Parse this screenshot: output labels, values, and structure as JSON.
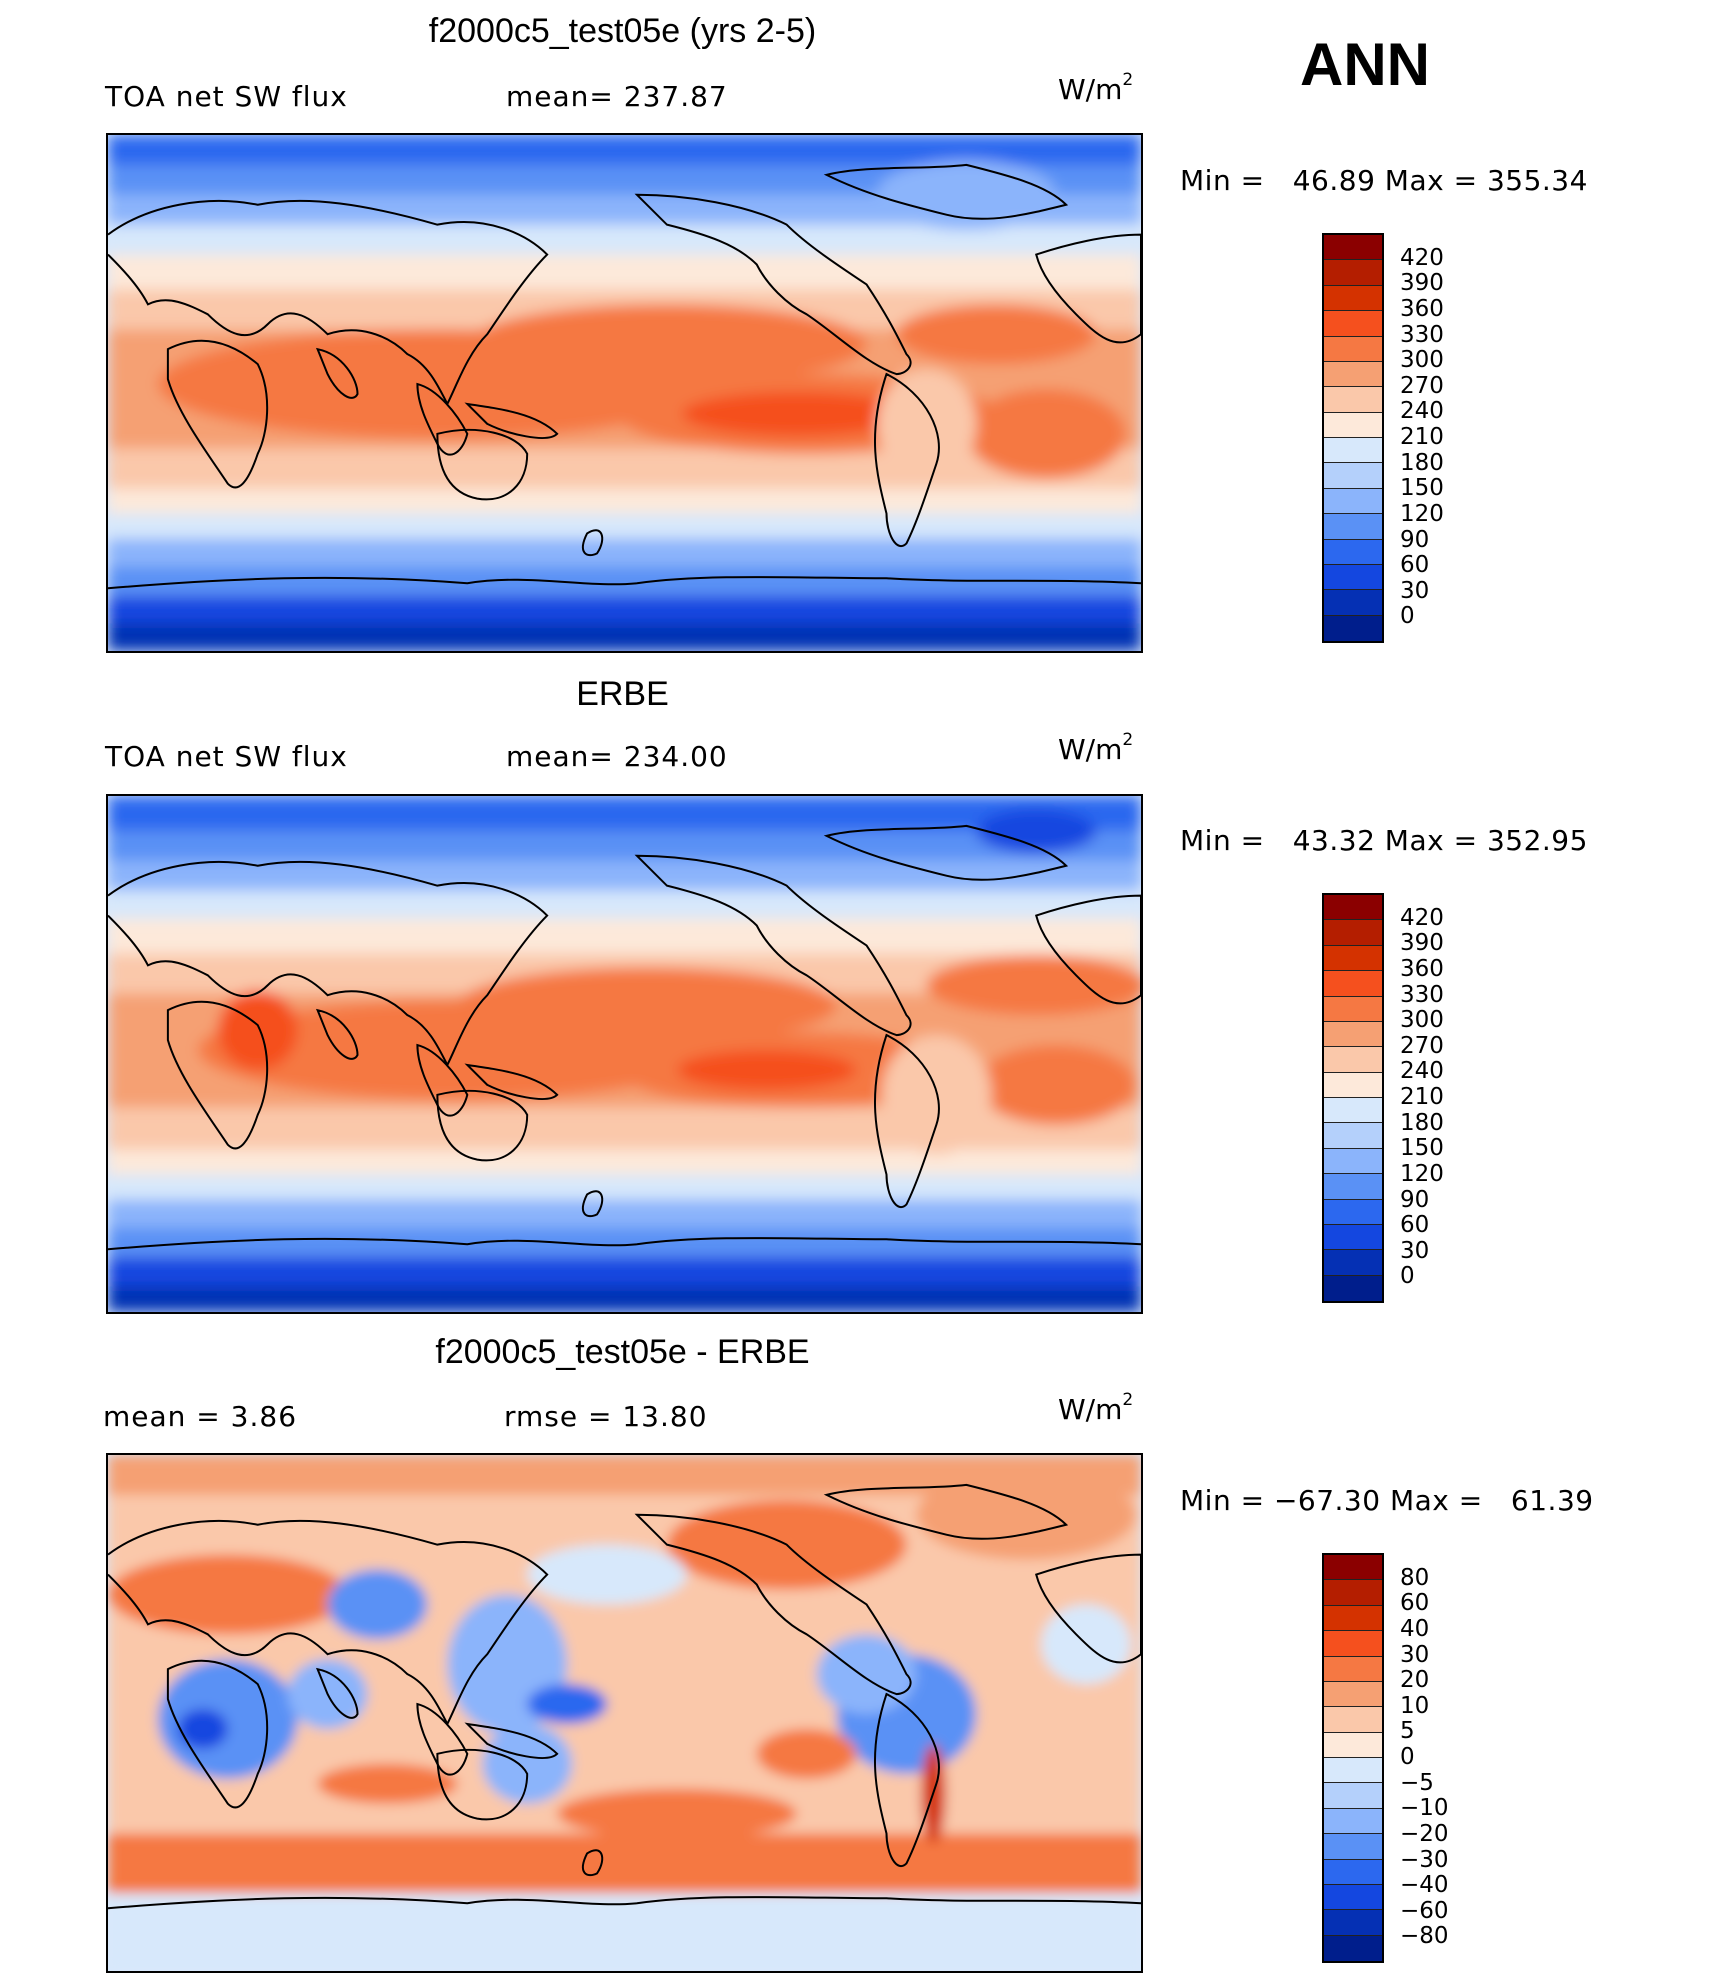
{
  "season": "ANN",
  "panels": [
    {
      "title": "f2000c5_test05e (yrs 2-5)",
      "left_label": "TOA net SW flux",
      "mean_label": "mean= 237.87",
      "units_base": "W/m",
      "units_exp": "2",
      "minmax": "Min =   46.89 Max = 355.34"
    },
    {
      "title": "ERBE",
      "left_label": "TOA net SW flux",
      "mean_label": "mean= 234.00",
      "units_base": "W/m",
      "units_exp": "2",
      "minmax": "Min =   43.32 Max = 352.95"
    },
    {
      "title": "f2000c5_test05e - ERBE",
      "left_label": "mean =    3.86",
      "mean_label": "rmse =   13.80",
      "units_base": "W/m",
      "units_exp": "2",
      "minmax": "Min = −67.30 Max =   61.39"
    }
  ],
  "colorbars": {
    "absolute": {
      "labels": [
        "420",
        "390",
        "360",
        "330",
        "300",
        "270",
        "240",
        "210",
        "180",
        "150",
        "120",
        "90",
        "60",
        "30",
        "0"
      ],
      "colors": [
        "#8b0000",
        "#b41e00",
        "#d43200",
        "#f5501e",
        "#f57843",
        "#f5a073",
        "#fac8aa",
        "#fde9da",
        "#d7e8fb",
        "#b4d0fb",
        "#8bb4fb",
        "#5a91f5",
        "#2c68ef",
        "#1447e0",
        "#0530b4",
        "#001e8c"
      ]
    },
    "difference": {
      "labels": [
        "80",
        "60",
        "40",
        "30",
        "20",
        "10",
        "5",
        "0",
        "−5",
        "−10",
        "−20",
        "−30",
        "−40",
        "−60",
        "−80"
      ],
      "colors": [
        "#8b0000",
        "#b41e00",
        "#d43200",
        "#f5501e",
        "#f57843",
        "#f5a073",
        "#fac8aa",
        "#fde9da",
        "#d7e8fb",
        "#b4d0fb",
        "#8bb4fb",
        "#5a91f5",
        "#2c68ef",
        "#1447e0",
        "#0530b4",
        "#001e8c"
      ]
    }
  }
}
